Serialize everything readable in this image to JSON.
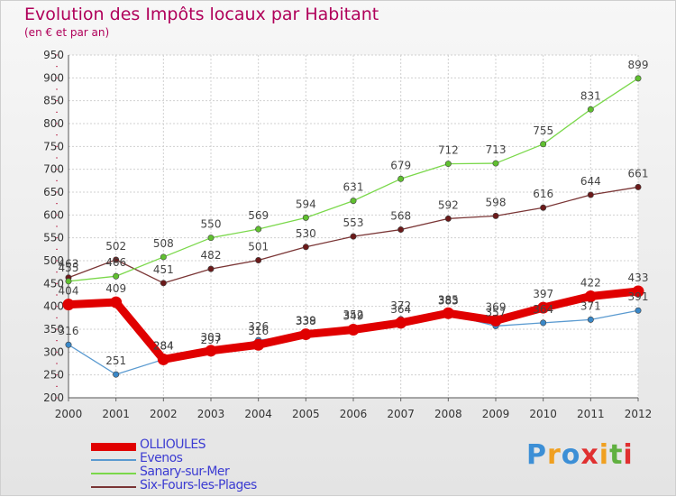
{
  "title": "Evolution des Impôts locaux par Habitant",
  "subtitle": "(en € et par an)",
  "brand": {
    "text": "Proxiti",
    "letters": [
      "P",
      "r",
      "o",
      "x",
      "i",
      "t",
      "i"
    ],
    "colors": [
      "#3c8fd6",
      "#f0a020",
      "#3c8fd6",
      "#e03030",
      "#f0a020",
      "#60b040",
      "#e03030"
    ]
  },
  "chart_data": {
    "type": "line",
    "title": "Evolution des Impôts locaux par Habitant",
    "subtitle": "(en € et par an)",
    "xlabel": "",
    "ylabel": "",
    "ylim": [
      200,
      950
    ],
    "yticks": [
      200,
      250,
      300,
      350,
      400,
      450,
      500,
      550,
      600,
      650,
      700,
      750,
      800,
      850,
      900,
      950
    ],
    "x": [
      2000,
      2001,
      2002,
      2003,
      2004,
      2005,
      2006,
      2007,
      2008,
      2009,
      2010,
      2011,
      2012
    ],
    "grid": true,
    "legend_position": "bottom-left",
    "series": [
      {
        "name": "Six-Fours-les-Plages",
        "color": "#6b1a1a",
        "line_color": "#7a3535",
        "thick": false,
        "values": [
          463,
          502,
          451,
          482,
          501,
          530,
          553,
          568,
          592,
          598,
          616,
          644,
          661
        ]
      },
      {
        "name": "Sanary-sur-Mer",
        "color": "#60c030",
        "line_color": "#7ad84a",
        "thick": false,
        "values": [
          455,
          466,
          508,
          550,
          569,
          594,
          631,
          679,
          712,
          713,
          755,
          831,
          899
        ]
      },
      {
        "name": "Evenos",
        "color": "#3a88c8",
        "line_color": "#5a9ad0",
        "thick": false,
        "values": [
          316,
          251,
          284,
          297,
          326,
          338,
          352,
          372,
          383,
          357,
          364,
          371,
          391
        ]
      },
      {
        "name": "OLLIOULES",
        "color": "#e00000",
        "line_color": "#e00000",
        "thick": true,
        "values": [
          404,
          409,
          284,
          303,
          316,
          339,
          349,
          364,
          385,
          369,
          397,
          422,
          433
        ]
      }
    ],
    "legend_order": [
      "OLLIOULES",
      "Evenos",
      "Sanary-sur-Mer",
      "Six-Fours-les-Plages"
    ]
  }
}
